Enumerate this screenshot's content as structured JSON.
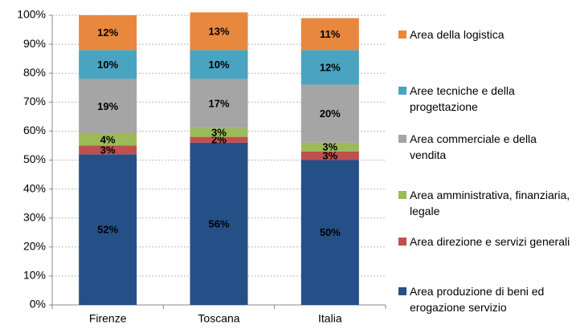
{
  "chart_data": {
    "type": "stacked_bar",
    "categories": [
      "Firenze",
      "Toscana",
      "Italia"
    ],
    "ylim": [
      0,
      100
    ],
    "yticks": [
      {
        "value": 0,
        "label": "0%"
      },
      {
        "value": 10,
        "label": "10%"
      },
      {
        "value": 20,
        "label": "20%"
      },
      {
        "value": 30,
        "label": "30%"
      },
      {
        "value": 40,
        "label": "40%"
      },
      {
        "value": 50,
        "label": "50%"
      },
      {
        "value": 60,
        "label": "60%"
      },
      {
        "value": 70,
        "label": "70%"
      },
      {
        "value": 80,
        "label": "80%"
      },
      {
        "value": 90,
        "label": "90%"
      },
      {
        "value": 100,
        "label": "100%"
      }
    ],
    "grid": true,
    "legend": "right",
    "series": [
      {
        "name": "Area produzione di beni ed erogazione servizio",
        "color": "#254f87",
        "label_color": "#ffffff",
        "values": [
          52,
          56,
          50
        ],
        "value_labels": [
          "52%",
          "56%",
          "50%"
        ]
      },
      {
        "name": "Area direzione e servizi generali",
        "color": "#c0504d",
        "label_color": "#ffffff",
        "values": [
          3,
          2,
          3
        ],
        "value_labels": [
          "3%",
          "2%",
          "3%"
        ]
      },
      {
        "name": "Area amministrativa, finanziaria, legale",
        "color": "#9bbb59",
        "label_color": "#1f497d",
        "values": [
          4,
          3,
          3
        ],
        "value_labels": [
          "4%",
          "3%",
          "3%"
        ]
      },
      {
        "name": "Area commerciale e della vendita",
        "color": "#a5a5a5",
        "label_color": "#000000",
        "values": [
          19,
          17,
          20
        ],
        "value_labels": [
          "19%",
          "17%",
          "20%"
        ]
      },
      {
        "name": "Aree tecniche e della progettazione",
        "color": "#4aa3c0",
        "label_color": "#ffffff",
        "values": [
          10,
          10,
          12
        ],
        "value_labels": [
          "10%",
          "10%",
          "12%"
        ]
      },
      {
        "name": "Area della logistica",
        "color": "#e8873e",
        "label_color": "#ffffff",
        "values": [
          12,
          13,
          11
        ],
        "value_labels": [
          "12%",
          "13%",
          "11%"
        ]
      }
    ]
  }
}
